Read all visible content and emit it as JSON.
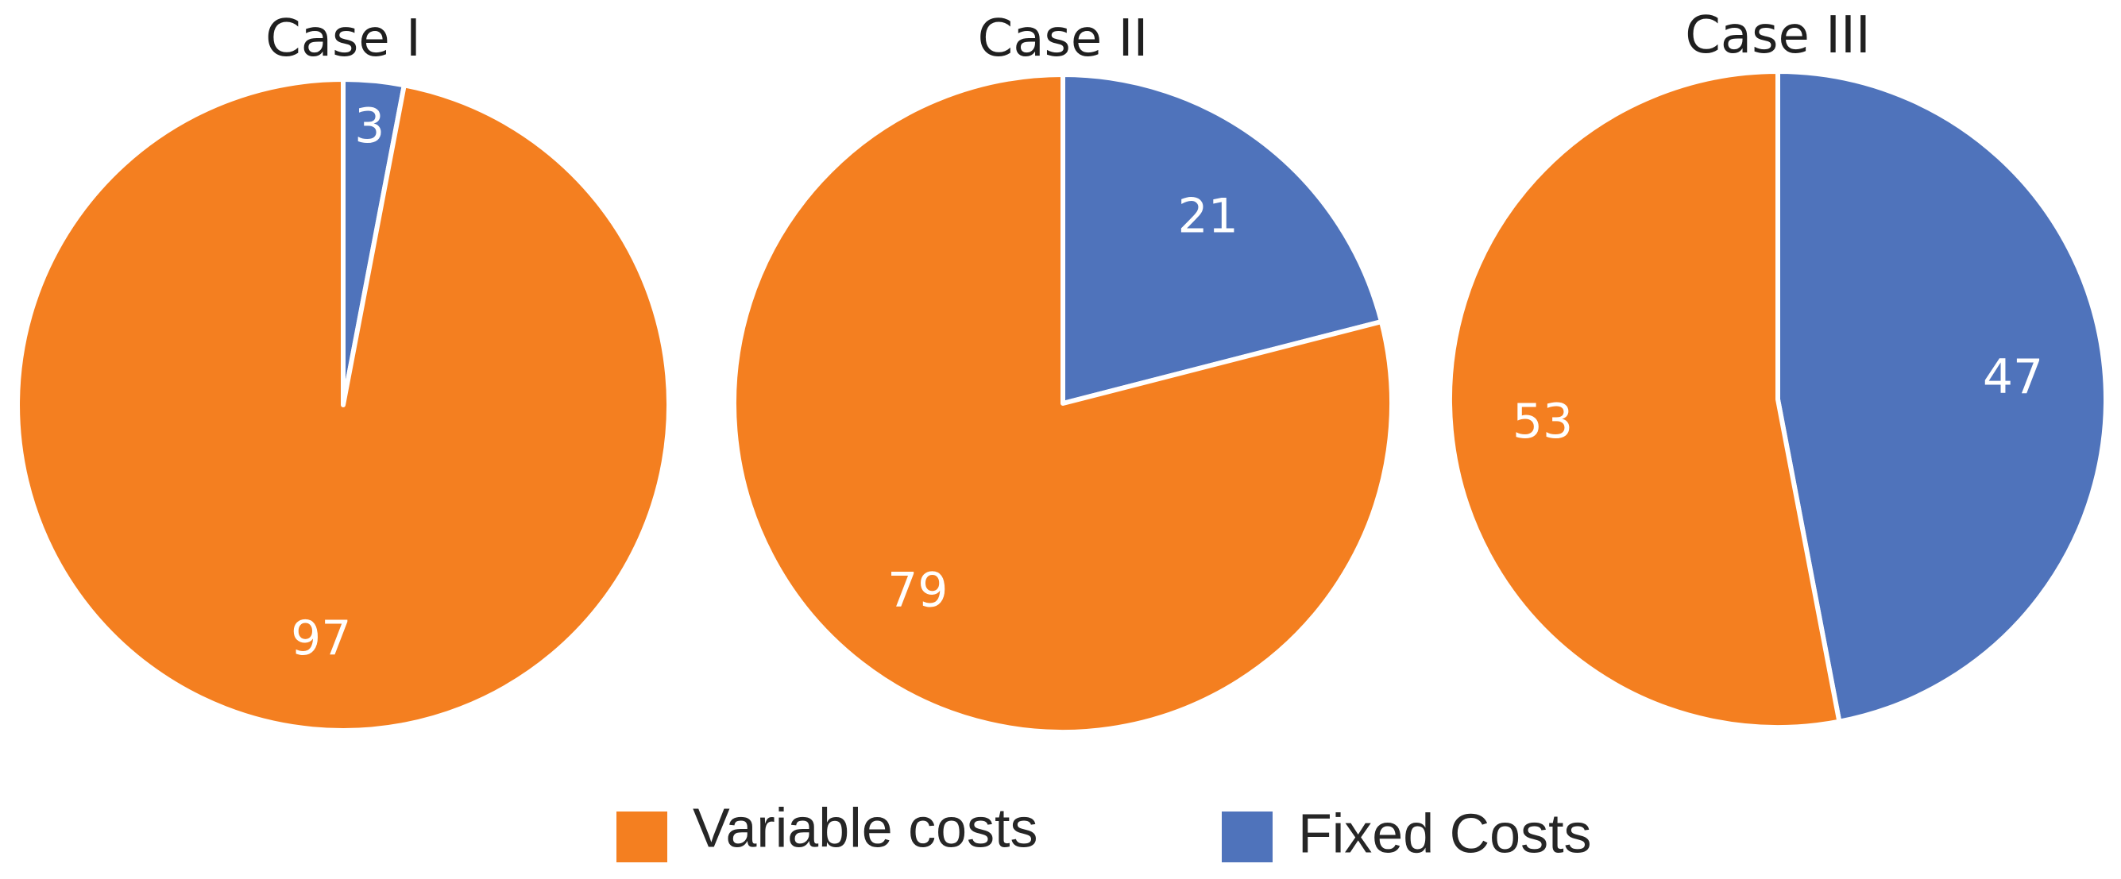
{
  "chart_data": {
    "type": "pie",
    "legend": {
      "position": "bottom",
      "items": [
        {
          "name": "Variable costs",
          "color": "#F47F20"
        },
        {
          "name": "Fixed Costs",
          "color": "#4F73BB"
        }
      ]
    },
    "charts": [
      {
        "title": "Case I",
        "slices": [
          {
            "name": "Fixed Costs",
            "value": 3,
            "color": "#4F73BB"
          },
          {
            "name": "Variable costs",
            "value": 97,
            "color": "#F47F20"
          }
        ]
      },
      {
        "title": "Case II",
        "slices": [
          {
            "name": "Fixed Costs",
            "value": 21,
            "color": "#4F73BB"
          },
          {
            "name": "Variable costs",
            "value": 79,
            "color": "#F47F20"
          }
        ]
      },
      {
        "title": "Case III",
        "slices": [
          {
            "name": "Fixed Costs",
            "value": 47,
            "color": "#4F73BB"
          },
          {
            "name": "Variable costs",
            "value": 53,
            "color": "#F47F20"
          }
        ]
      }
    ]
  }
}
